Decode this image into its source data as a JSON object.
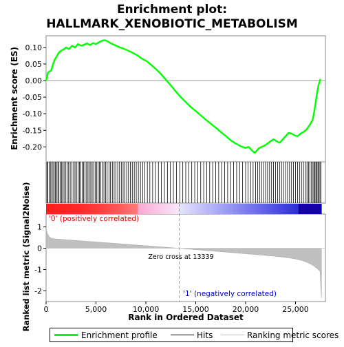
{
  "chart_data": {
    "type": "line",
    "title_line1": "Enrichment plot:",
    "title_line2": "HALLMARK_XENOBIOTIC_METABOLISM",
    "es_ylabel": "Enrichment score (ES)",
    "metric_ylabel": "Ranked list metric (Signal2Noise)",
    "xlabel": "Rank in Ordered Dataset",
    "xlim": [
      0,
      28000
    ],
    "x_ticks": [
      0,
      5000,
      10000,
      15000,
      20000,
      25000
    ],
    "x_tick_labels": [
      "0",
      "5,000",
      "10,000",
      "15,000",
      "20,000",
      "25,000"
    ],
    "es_ylim": [
      -0.245,
      0.135
    ],
    "es_ticks": [
      0.1,
      0.05,
      0.0,
      -0.05,
      -0.1,
      -0.15,
      -0.2
    ],
    "es_tick_labels": [
      "0.10",
      "0.05",
      "0.00",
      "-0.05",
      "-0.10",
      "-0.15",
      "-0.20"
    ],
    "metric_ylim": [
      -2.5,
      1.6
    ],
    "metric_ticks": [
      1,
      0,
      -1,
      -2
    ],
    "metric_tick_labels": [
      "1",
      "0",
      "-1",
      "-2"
    ],
    "zero_cross_label": "Zero cross at 13339",
    "zero_cross": 13339,
    "pos_label": "'0' (positively correlated)",
    "neg_label": "'1' (negatively correlated)",
    "total_genes": 27600,
    "series": [
      {
        "name": "Enrichment profile",
        "color": "#00ff00",
        "x": [
          0,
          200,
          500,
          700,
          900,
          1100,
          1300,
          1500,
          1800,
          2000,
          2300,
          2600,
          2900,
          3200,
          3500,
          3800,
          4100,
          4400,
          4700,
          5000,
          5300,
          5600,
          5900,
          6200,
          6500,
          6800,
          7100,
          7400,
          7700,
          8000,
          8300,
          8600,
          8900,
          9200,
          9500,
          9800,
          10100,
          10500,
          11000,
          11500,
          12000,
          12500,
          13000,
          13500,
          14000,
          14500,
          15000,
          15500,
          16000,
          16500,
          17000,
          17500,
          18000,
          18500,
          19000,
          19500,
          20000,
          20300,
          20600,
          20900,
          21100,
          21300,
          21600,
          21900,
          22200,
          22500,
          22800,
          23100,
          23400,
          23700,
          24000,
          24300,
          24600,
          24900,
          25200,
          25500,
          25800,
          26100,
          26400,
          26700,
          26900,
          27100,
          27300,
          27500
        ],
        "y": [
          0.0,
          0.025,
          0.03,
          0.05,
          0.065,
          0.075,
          0.085,
          0.09,
          0.095,
          0.1,
          0.095,
          0.105,
          0.1,
          0.11,
          0.105,
          0.108,
          0.112,
          0.107,
          0.113,
          0.11,
          0.116,
          0.12,
          0.122,
          0.118,
          0.112,
          0.108,
          0.104,
          0.1,
          0.097,
          0.093,
          0.089,
          0.085,
          0.08,
          0.075,
          0.068,
          0.063,
          0.058,
          0.048,
          0.035,
          0.02,
          0.003,
          -0.015,
          -0.033,
          -0.05,
          -0.065,
          -0.08,
          -0.092,
          -0.105,
          -0.118,
          -0.13,
          -0.142,
          -0.155,
          -0.167,
          -0.18,
          -0.19,
          -0.198,
          -0.203,
          -0.2,
          -0.21,
          -0.218,
          -0.212,
          -0.205,
          -0.2,
          -0.196,
          -0.19,
          -0.183,
          -0.177,
          -0.183,
          -0.188,
          -0.178,
          -0.168,
          -0.158,
          -0.16,
          -0.165,
          -0.168,
          -0.16,
          -0.155,
          -0.148,
          -0.135,
          -0.12,
          -0.09,
          -0.05,
          -0.015,
          0.005
        ]
      }
    ],
    "hits_label": "Hits",
    "ranking_label": "Ranking metric scores",
    "hits": [
      80,
      180,
      300,
      430,
      560,
      690,
      820,
      930,
      1050,
      1180,
      1290,
      1420,
      1540,
      1660,
      1800,
      1950,
      2100,
      2260,
      2420,
      2600,
      2760,
      2900,
      3050,
      3200,
      3340,
      3480,
      3620,
      3760,
      3910,
      4060,
      4200,
      4340,
      4480,
      4620,
      4780,
      4920,
      5060,
      5200,
      5340,
      5480,
      5640,
      5800,
      5960,
      6120,
      6300,
      6460,
      6640,
      6820,
      7000,
      7180,
      7360,
      7540,
      7720,
      7900,
      8080,
      8260,
      8450,
      8640,
      8840,
      9040,
      9250,
      9460,
      9680,
      9900,
      10150,
      10400,
      10680,
      10960,
      11260,
      11560,
      11860,
      12160,
      12460,
      12760,
      13060,
      13400,
      13700,
      14000,
      14300,
      14600,
      14900,
      15200,
      15500,
      15800,
      16100,
      16400,
      16700,
      17000,
      17300,
      17600,
      17900,
      18200,
      18500,
      18800,
      19100,
      19400,
      19700,
      20000,
      20250,
      20500,
      20750,
      21000,
      21200,
      21400,
      21600,
      21800,
      22000,
      22200,
      22400,
      22600,
      22800,
      23000,
      23200,
      23400,
      23600,
      23800,
      24000,
      24200,
      24400,
      24600,
      24800,
      25000,
      25200,
      25400,
      25600,
      25800,
      26000,
      26150,
      26300,
      26450,
      26600,
      26750,
      26850,
      26950,
      27050,
      27150,
      27250,
      27350,
      27450,
      27550
    ]
  }
}
